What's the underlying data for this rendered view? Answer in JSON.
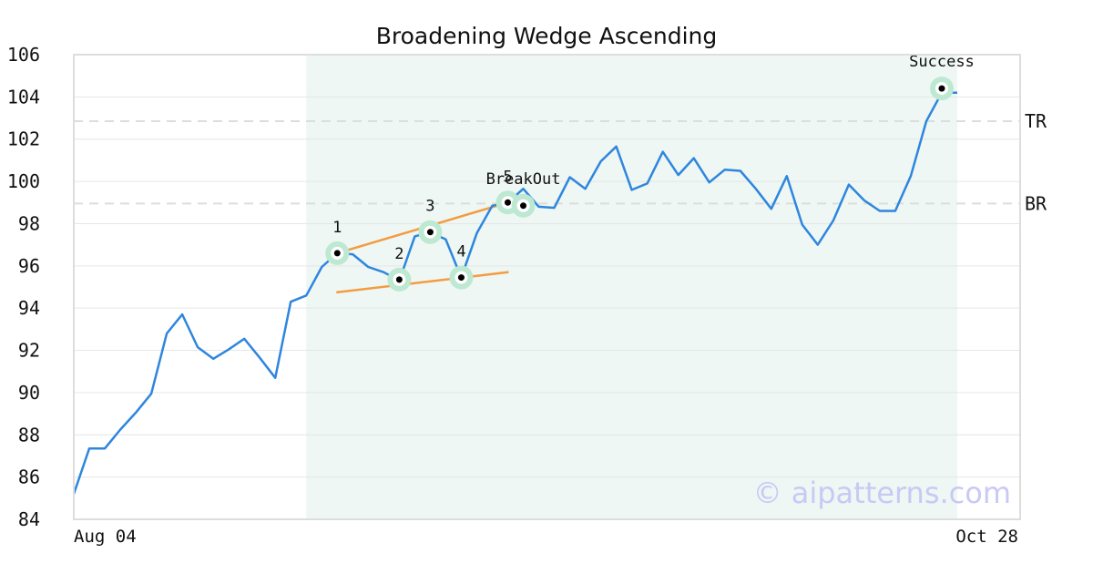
{
  "chart_data": {
    "type": "line",
    "title": "Broadening Wedge Ascending",
    "xlabel": "",
    "ylabel": "",
    "ylim": [
      84,
      106
    ],
    "yticks": [
      84,
      86,
      88,
      90,
      92,
      94,
      96,
      98,
      100,
      102,
      104,
      106
    ],
    "x_tick_labels": [
      "Aug 04",
      "Oct 28"
    ],
    "grid": true,
    "series": [
      {
        "color": "#2e86de",
        "values": [
          85.2,
          87.35,
          87.35,
          88.25,
          89.05,
          89.95,
          92.8,
          93.7,
          92.15,
          91.6,
          92.05,
          92.55,
          91.65,
          90.7,
          94.3,
          94.6,
          95.95,
          96.6,
          96.55,
          95.95,
          95.7,
          95.3,
          97.4,
          97.6,
          97.25,
          95.45,
          97.55,
          98.85,
          99.0,
          99.65,
          98.8,
          98.75,
          100.2,
          99.65,
          100.95,
          101.65,
          99.6,
          99.9,
          101.4,
          100.3,
          101.1,
          99.95,
          100.55,
          100.5,
          99.65,
          98.7,
          100.25,
          97.95,
          97.0,
          98.15,
          99.85,
          99.1,
          98.6,
          98.6,
          100.25,
          102.85,
          104.2,
          104.2
        ]
      }
    ],
    "highlight_region": {
      "start_index": 15,
      "end_index": 57,
      "color": "#eef7f3"
    },
    "reference_lines": [
      {
        "label": "TR",
        "value": 102.85
      },
      {
        "label": "BR",
        "value": 98.95
      }
    ],
    "trend_lines": [
      {
        "color": "#f39c40",
        "start": {
          "x_index": 17,
          "y": 96.6
        },
        "end": {
          "x_index": 28,
          "y": 99.0
        }
      },
      {
        "color": "#f39c40",
        "start": {
          "x_index": 17,
          "y": 94.75
        },
        "end": {
          "x_index": 28,
          "y": 95.7
        }
      }
    ],
    "points": [
      {
        "label": "1",
        "x_index": 17,
        "y": 96.6
      },
      {
        "label": "2",
        "x_index": 21,
        "y": 95.35
      },
      {
        "label": "3",
        "x_index": 23,
        "y": 97.6
      },
      {
        "label": "4",
        "x_index": 25,
        "y": 95.45
      },
      {
        "label": "5",
        "x_index": 28,
        "y": 99.0
      }
    ],
    "annotations": [
      {
        "label": "BreakOut",
        "x_index": 29,
        "y": 98.85
      },
      {
        "label": "Success",
        "x_index": 56,
        "y": 104.4
      }
    ],
    "colors": {
      "line": "#2e86de",
      "trend": "#f39c40",
      "marker_ring": "#bde8d2",
      "reference": "#dddddd"
    },
    "watermark": "© aipatterns.com"
  }
}
